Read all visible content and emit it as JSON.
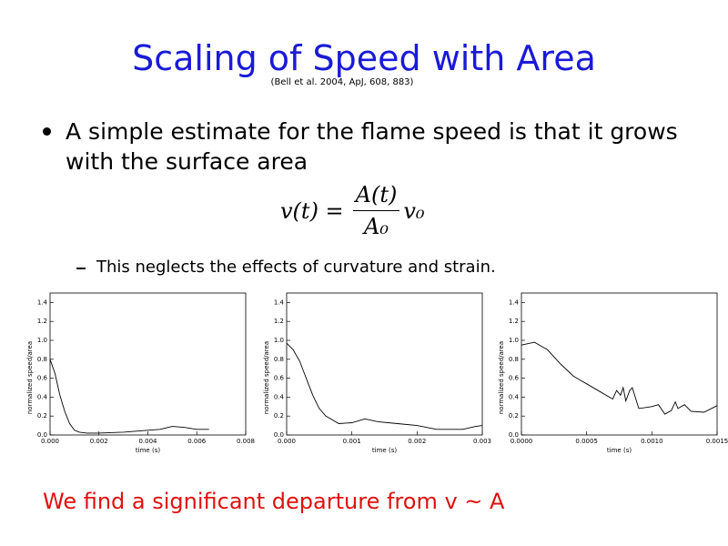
{
  "slide": {
    "title": "Scaling of Speed with Area",
    "citation": "(Bell et al. 2004, ApJ, 608, 883)",
    "bullet": "A simple estimate for the flame speed is that it grows with the surface area",
    "equation": {
      "lhs": "v(t) =",
      "numerator": "A(t)",
      "denominator": "A₀",
      "factor": "v₀"
    },
    "sub_bullet": "This neglects the effects of curvature and strain.",
    "conclusion": "We find a significant departure from v ~ A"
  },
  "chart_data": [
    {
      "type": "line",
      "xlabel": "time (s)",
      "ylabel": "normalized speed/area",
      "color": "#000000",
      "x": [
        0,
        0.0002,
        0.0004,
        0.0006,
        0.0008,
        0.001,
        0.0012,
        0.0015,
        0.002,
        0.003,
        0.004,
        0.0045,
        0.005,
        0.0055,
        0.006,
        0.0065
      ],
      "values": [
        0.8,
        0.65,
        0.42,
        0.25,
        0.12,
        0.05,
        0.03,
        0.02,
        0.02,
        0.03,
        0.05,
        0.06,
        0.09,
        0.08,
        0.06,
        0.06
      ],
      "xlim": [
        0,
        0.008
      ],
      "xticks": [
        {
          "value": 0,
          "label": "0.000"
        },
        {
          "value": 0.002,
          "label": "0.002"
        },
        {
          "value": 0.004,
          "label": "0.004"
        },
        {
          "value": 0.006,
          "label": "0.006"
        },
        {
          "value": 0.008,
          "label": "0.008"
        }
      ],
      "ylim": [
        0,
        1.5
      ],
      "yticks": [
        {
          "value": 0,
          "label": "0.0"
        },
        {
          "value": 0.2,
          "label": "0.2"
        },
        {
          "value": 0.4,
          "label": "0.4"
        },
        {
          "value": 0.6,
          "label": "0.6"
        },
        {
          "value": 0.8,
          "label": "0.8"
        },
        {
          "value": 1,
          "label": "1.0"
        },
        {
          "value": 1.2,
          "label": "1.2"
        },
        {
          "value": 1.4,
          "label": "1.4"
        }
      ]
    },
    {
      "type": "line",
      "xlabel": "time (s)",
      "ylabel": "normalized speed/area",
      "color": "#000000",
      "x": [
        0,
        0.0001,
        0.0002,
        0.0003,
        0.0004,
        0.0005,
        0.0006,
        0.0008,
        0.001,
        0.0012,
        0.0014,
        0.0017,
        0.002,
        0.0023,
        0.0027,
        0.0029,
        0.003
      ],
      "values": [
        0.97,
        0.9,
        0.78,
        0.6,
        0.42,
        0.28,
        0.2,
        0.12,
        0.13,
        0.17,
        0.14,
        0.12,
        0.1,
        0.06,
        0.06,
        0.09,
        0.1
      ],
      "xlim": [
        0,
        0.003
      ],
      "xticks": [
        {
          "value": 0,
          "label": "0.000"
        },
        {
          "value": 0.001,
          "label": "0.001"
        },
        {
          "value": 0.002,
          "label": "0.002"
        },
        {
          "value": 0.003,
          "label": "0.003"
        }
      ],
      "ylim": [
        0,
        1.5
      ],
      "yticks": [
        {
          "value": 0,
          "label": "0.0"
        },
        {
          "value": 0.2,
          "label": "0.2"
        },
        {
          "value": 0.4,
          "label": "0.4"
        },
        {
          "value": 0.6,
          "label": "0.6"
        },
        {
          "value": 0.8,
          "label": "0.8"
        },
        {
          "value": 1,
          "label": "1.0"
        },
        {
          "value": 1.2,
          "label": "1.2"
        },
        {
          "value": 1.4,
          "label": "1.4"
        }
      ]
    },
    {
      "type": "line",
      "xlabel": "time (s)",
      "ylabel": "normalized speed/area",
      "color": "#000000",
      "x": [
        0,
        0.0001,
        0.0002,
        0.0003,
        0.0004,
        0.0005,
        0.0006,
        0.0007,
        0.00073,
        0.00076,
        0.00078,
        0.0008,
        0.00083,
        0.00085,
        0.0009,
        0.001,
        0.00105,
        0.0011,
        0.00115,
        0.00118,
        0.0012,
        0.00125,
        0.0013,
        0.0014,
        0.0015
      ],
      "values": [
        0.95,
        0.98,
        0.9,
        0.75,
        0.62,
        0.54,
        0.46,
        0.38,
        0.47,
        0.42,
        0.5,
        0.36,
        0.47,
        0.5,
        0.28,
        0.3,
        0.32,
        0.22,
        0.26,
        0.35,
        0.28,
        0.32,
        0.25,
        0.24,
        0.31
      ],
      "xlim": [
        0,
        0.0015
      ],
      "xticks": [
        {
          "value": 0,
          "label": "0.0000"
        },
        {
          "value": 0.0005,
          "label": "0.0005"
        },
        {
          "value": 0.001,
          "label": "0.0010"
        },
        {
          "value": 0.0015,
          "label": "0.0015"
        }
      ],
      "ylim": [
        0,
        1.5
      ],
      "yticks": [
        {
          "value": 0,
          "label": "0.0"
        },
        {
          "value": 0.2,
          "label": "0.2"
        },
        {
          "value": 0.4,
          "label": "0.4"
        },
        {
          "value": 0.6,
          "label": "0.6"
        },
        {
          "value": 0.8,
          "label": "0.8"
        },
        {
          "value": 1,
          "label": "1.0"
        },
        {
          "value": 1.2,
          "label": "1.2"
        },
        {
          "value": 1.4,
          "label": "1.4"
        }
      ]
    }
  ]
}
